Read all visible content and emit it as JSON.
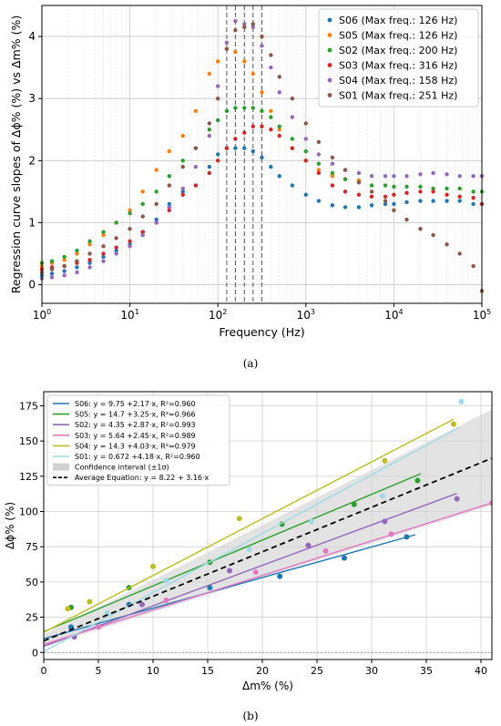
{
  "captions": {
    "a": "(a)",
    "b": "(b)"
  },
  "chart_data": [
    {
      "type": "scatter",
      "xscale": "log",
      "xlabel": "Frequency (Hz)",
      "ylabel": "Regression curve slopes of Δϕ% (%) vs Δm% (%)",
      "xlim": [
        1,
        100000
      ],
      "ylim": [
        -0.3,
        4.5
      ],
      "xticks": [
        {
          "v": 1,
          "base": "10",
          "exp": "0"
        },
        {
          "v": 10,
          "base": "10",
          "exp": "1"
        },
        {
          "v": 100,
          "base": "10",
          "exp": "2"
        },
        {
          "v": 1000,
          "base": "10",
          "exp": "3"
        },
        {
          "v": 10000,
          "base": "10",
          "exp": "4"
        },
        {
          "v": 100000,
          "base": "10",
          "exp": "5"
        }
      ],
      "yticks": [
        "0",
        "1",
        "2",
        "3",
        "4"
      ],
      "grid": true,
      "legend_position": "top-right",
      "vlines": [
        126,
        158,
        200,
        251,
        316
      ],
      "series": [
        {
          "name": "S06 (Max freq.: 126 Hz)",
          "color": "#1f77b4",
          "x": [
            1,
            1.3,
            1.8,
            2.5,
            3.5,
            5,
            7,
            10,
            14,
            20,
            28,
            40,
            56,
            80,
            100,
            126,
            158,
            200,
            251,
            316,
            400,
            500,
            700,
            1000,
            1400,
            2000,
            2800,
            4000,
            5600,
            8000,
            10000,
            14000,
            20000,
            28000,
            40000,
            56000,
            80000,
            100000
          ],
          "y": [
            0.15,
            0.18,
            0.22,
            0.28,
            0.35,
            0.45,
            0.55,
            0.65,
            0.85,
            1.05,
            1.3,
            1.5,
            1.6,
            1.9,
            2.1,
            2.2,
            2.2,
            2.2,
            2.15,
            2.05,
            1.9,
            1.75,
            1.6,
            1.45,
            1.35,
            1.28,
            1.25,
            1.25,
            1.28,
            1.3,
            1.3,
            1.33,
            1.35,
            1.35,
            1.35,
            1.35,
            1.3,
            1.3
          ]
        },
        {
          "name": "S05 (Max freq.: 126 Hz)",
          "color": "#ff7f0e",
          "x": [
            1,
            1.3,
            1.8,
            2.5,
            3.5,
            5,
            7,
            10,
            14,
            20,
            28,
            40,
            56,
            80,
            100,
            126,
            158,
            200,
            251,
            316,
            400,
            500,
            700,
            1000,
            1400,
            2000,
            2800,
            4000
          ],
          "y": [
            0.3,
            0.35,
            0.4,
            0.5,
            0.65,
            0.8,
            1.0,
            1.2,
            1.5,
            1.85,
            2.15,
            2.4,
            2.8,
            3.4,
            3.6,
            3.8,
            3.75,
            3.6,
            3.4,
            3.1,
            2.8,
            2.5,
            2.2,
            2.0,
            1.85,
            1.75,
            1.7,
            1.68
          ]
        },
        {
          "name": "S02 (Max freq.: 200 Hz)",
          "color": "#2ca02c",
          "x": [
            1,
            1.3,
            1.8,
            2.5,
            3.5,
            5,
            7,
            10,
            14,
            20,
            28,
            40,
            56,
            80,
            100,
            126,
            158,
            200,
            251,
            316,
            400,
            500,
            700,
            1000,
            1400,
            2000,
            2800,
            4000,
            5600,
            8000,
            10000,
            14000,
            20000,
            28000,
            40000,
            56000,
            80000,
            100000
          ],
          "y": [
            0.35,
            0.38,
            0.45,
            0.55,
            0.7,
            0.85,
            1.0,
            1.15,
            1.3,
            1.5,
            1.75,
            2.0,
            2.2,
            2.5,
            2.65,
            2.8,
            2.85,
            2.85,
            2.85,
            2.8,
            2.7,
            2.55,
            2.35,
            2.15,
            1.95,
            1.8,
            1.7,
            1.65,
            1.6,
            1.6,
            1.58,
            1.58,
            1.58,
            1.55,
            1.55,
            1.55,
            1.5,
            1.5
          ]
        },
        {
          "name": "S03 (Max freq.: 316 Hz)",
          "color": "#d62728",
          "x": [
            1,
            1.3,
            1.8,
            2.5,
            3.5,
            5,
            7,
            10,
            14,
            20,
            28,
            40,
            56,
            80,
            100,
            126,
            158,
            200,
            251,
            316,
            400,
            500,
            700,
            1000,
            1400,
            2000,
            2800,
            4000,
            5600,
            8000,
            10000,
            14000,
            20000,
            28000,
            40000,
            56000,
            80000,
            100000
          ],
          "y": [
            0.25,
            0.28,
            0.3,
            0.35,
            0.4,
            0.5,
            0.6,
            0.7,
            0.85,
            1.0,
            1.2,
            1.45,
            1.6,
            1.8,
            2.0,
            2.2,
            2.35,
            2.45,
            2.55,
            2.55,
            2.5,
            2.4,
            2.2,
            2.0,
            1.8,
            1.6,
            1.5,
            1.45,
            1.42,
            1.42,
            1.45,
            1.48,
            1.5,
            1.5,
            1.45,
            1.42,
            1.4,
            1.3
          ]
        },
        {
          "name": "S04 (Max freq.: 158 Hz)",
          "color": "#9467bd",
          "x": [
            1,
            1.3,
            1.8,
            2.5,
            3.5,
            5,
            7,
            10,
            14,
            20,
            28,
            40,
            56,
            80,
            100,
            126,
            158,
            200,
            251,
            316,
            400,
            500,
            700,
            1000,
            1400,
            2000,
            2800,
            4000,
            5600,
            8000,
            10000,
            14000,
            20000,
            28000,
            40000,
            56000,
            80000,
            100000
          ],
          "y": [
            0.1,
            0.12,
            0.15,
            0.2,
            0.28,
            0.38,
            0.5,
            0.62,
            0.8,
            1.0,
            1.25,
            1.55,
            1.9,
            2.4,
            3.2,
            3.9,
            4.25,
            4.2,
            4.15,
            3.85,
            3.5,
            3.1,
            2.7,
            2.35,
            2.1,
            1.95,
            1.85,
            1.8,
            1.75,
            1.75,
            1.75,
            1.75,
            1.78,
            1.8,
            1.78,
            1.75,
            1.75,
            1.75
          ]
        },
        {
          "name": "S01 (Max freq.: 251 Hz)",
          "color": "#8c564b",
          "x": [
            1,
            1.3,
            1.8,
            2.5,
            3.5,
            5,
            7,
            10,
            14,
            20,
            28,
            40,
            56,
            80,
            100,
            126,
            158,
            200,
            251,
            316,
            400,
            500,
            700,
            1000,
            1400,
            2000,
            2800,
            4000,
            5600,
            8000,
            10000,
            14000,
            20000,
            28000,
            40000,
            56000,
            80000,
            100000
          ],
          "y": [
            0.2,
            0.25,
            0.3,
            0.38,
            0.5,
            0.62,
            0.75,
            0.9,
            1.1,
            1.3,
            1.6,
            1.9,
            2.2,
            2.6,
            3.0,
            3.8,
            4.1,
            4.15,
            4.2,
            4.0,
            3.7,
            3.35,
            3.0,
            2.6,
            2.3,
            2.05,
            1.85,
            1.65,
            1.5,
            1.35,
            1.2,
            1.05,
            0.9,
            0.8,
            0.65,
            0.5,
            0.3,
            -0.1
          ]
        }
      ]
    },
    {
      "type": "scatter",
      "xlabel": "Δm% (%)",
      "ylabel": "Δϕ% (%)",
      "xlim": [
        0,
        41
      ],
      "ylim": [
        -5,
        185
      ],
      "xticks": [
        "0",
        "5",
        "10",
        "15",
        "20",
        "25",
        "30",
        "35",
        "40"
      ],
      "yticks": [
        "0",
        "25",
        "50",
        "75",
        "100",
        "125",
        "150",
        "175"
      ],
      "grid": true,
      "legend_position": "top-left",
      "series": [
        {
          "name": "S06: y = 9.75 +2.17·x, R²=0.960",
          "color": "#1f77b4",
          "intercept": 9.75,
          "slope": 2.17,
          "line_x": [
            0,
            34
          ],
          "x": [
            2.5,
            7.8,
            15.2,
            21.6,
            27.5,
            33.2
          ],
          "y": [
            18,
            34,
            46,
            54,
            67,
            82
          ]
        },
        {
          "name": "S05: y = 14.7 +3.25·x, R²=0.966",
          "color": "#2ca02c",
          "intercept": 14.7,
          "slope": 3.25,
          "line_x": [
            0,
            34.5
          ],
          "x": [
            2.5,
            7.8,
            15.2,
            21.8,
            28.4,
            34.2
          ],
          "y": [
            32,
            46,
            64,
            91,
            105,
            122
          ]
        },
        {
          "name": "S02: y = 4.35 +2.87·x, R²=0.993",
          "color": "#9467bd",
          "intercept": 4.35,
          "slope": 2.87,
          "line_x": [
            0,
            37.8
          ],
          "x": [
            2.8,
            9.0,
            17.0,
            24.2,
            31.2,
            37.8
          ],
          "y": [
            11,
            34,
            58,
            76,
            93,
            109
          ]
        },
        {
          "name": "S03: y = 5.64 +2.45·x, R²=0.989",
          "color": "#e377c2",
          "intercept": 5.64,
          "slope": 2.45,
          "line_x": [
            0,
            41
          ],
          "x": [
            5.0,
            11.2,
            19.4,
            25.8,
            31.8,
            41
          ],
          "y": [
            18,
            37,
            57,
            72,
            84,
            106
          ]
        },
        {
          "name": "S04: y = 14.3 +4.03·x, R²=0.979",
          "color": "#bcbd22",
          "intercept": 14.3,
          "slope": 4.03,
          "line_x": [
            0,
            37.5
          ],
          "x": [
            2.2,
            4.2,
            10.0,
            17.9,
            31.2,
            37.5
          ],
          "y": [
            31,
            36,
            61,
            95,
            136,
            162
          ]
        },
        {
          "name": "S01: y = 0.672 +4.18·x, R²=0.960",
          "color": "#9edae5",
          "intercept": 0.672,
          "slope": 4.18,
          "line_x": [
            0,
            38
          ],
          "x": [
            5.8,
            11.2,
            18.8,
            24.5,
            31.0,
            38.2
          ],
          "y": [
            28,
            51,
            73,
            93,
            111,
            178
          ]
        }
      ],
      "confidence_band": {
        "label": "Confidence interval (±1σ)",
        "color": "#d0d0d0",
        "lower_intercept": 4.0,
        "lower_slope": 2.45,
        "upper_intercept": 12.5,
        "upper_slope": 3.9
      },
      "average": {
        "label": "Average Equation: y = 8.22 + 3.16·x",
        "color": "#000000",
        "intercept": 8.22,
        "slope": 3.16
      }
    }
  ]
}
